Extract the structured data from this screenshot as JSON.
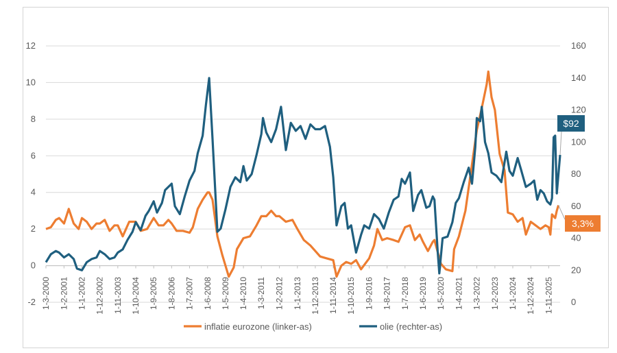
{
  "chart_data": {
    "type": "line",
    "title": "",
    "y_left": {
      "min": -2,
      "max": 12,
      "ticks": [
        "-2",
        "0",
        "2",
        "4",
        "6",
        "8",
        "10",
        "12"
      ]
    },
    "y_right": {
      "min": 0,
      "max": 160,
      "ticks": [
        "0",
        "20",
        "40",
        "60",
        "80",
        "100",
        "120",
        "140",
        "160"
      ]
    },
    "x_range": [
      "2000-03-01",
      "2026-06-01"
    ],
    "x_ticks": [
      {
        "label": "1-3-2000",
        "date": "2000-03-01"
      },
      {
        "label": "1-2-2001",
        "date": "2001-02-01"
      },
      {
        "label": "1-1-2002",
        "date": "2002-01-01"
      },
      {
        "label": "1-12-2002",
        "date": "2002-12-01"
      },
      {
        "label": "1-11-2003",
        "date": "2003-11-01"
      },
      {
        "label": "1-10-2004",
        "date": "2004-10-01"
      },
      {
        "label": "1-9-2005",
        "date": "2005-09-01"
      },
      {
        "label": "1-8-2006",
        "date": "2006-08-01"
      },
      {
        "label": "1-7-2007",
        "date": "2007-07-01"
      },
      {
        "label": "1-6-2008",
        "date": "2008-06-01"
      },
      {
        "label": "1-5-2009",
        "date": "2009-05-01"
      },
      {
        "label": "1-4-2010",
        "date": "2010-04-01"
      },
      {
        "label": "1-3-2011",
        "date": "2011-03-01"
      },
      {
        "label": "1-2-2012",
        "date": "2012-02-01"
      },
      {
        "label": "1-1-2013",
        "date": "2013-01-01"
      },
      {
        "label": "1-12-2013",
        "date": "2013-12-01"
      },
      {
        "label": "1-11-2014",
        "date": "2014-11-01"
      },
      {
        "label": "1-10-2015",
        "date": "2015-10-01"
      },
      {
        "label": "1-9-2016",
        "date": "2016-09-01"
      },
      {
        "label": "1-8-2017",
        "date": "2017-08-01"
      },
      {
        "label": "1-7-2018",
        "date": "2018-07-01"
      },
      {
        "label": "1-6-2019",
        "date": "2019-06-01"
      },
      {
        "label": "1-5-2020",
        "date": "2020-05-01"
      },
      {
        "label": "1-4-2021",
        "date": "2021-04-01"
      },
      {
        "label": "1-3-2022",
        "date": "2022-03-01"
      },
      {
        "label": "1-2-2023",
        "date": "2023-02-01"
      },
      {
        "label": "1-1-2024",
        "date": "2024-01-01"
      },
      {
        "label": "1-12-2024",
        "date": "2024-12-01"
      },
      {
        "label": "1-11-2025",
        "date": "2025-11-01"
      }
    ],
    "grid": "horizontal",
    "legend_position": "bottom",
    "series": [
      {
        "name": "inflatie eurozone (linker-as)",
        "axis": "left",
        "color": "#ED7D31",
        "points": [
          [
            "2000-03-01",
            2.0
          ],
          [
            "2000-06-01",
            2.1
          ],
          [
            "2000-09-01",
            2.5
          ],
          [
            "2000-11-01",
            2.6
          ],
          [
            "2001-02-01",
            2.3
          ],
          [
            "2001-05-01",
            3.1
          ],
          [
            "2001-08-01",
            2.3
          ],
          [
            "2001-11-01",
            2.0
          ],
          [
            "2002-01-01",
            2.6
          ],
          [
            "2002-04-01",
            2.4
          ],
          [
            "2002-07-01",
            2.0
          ],
          [
            "2002-10-01",
            2.3
          ],
          [
            "2002-12-01",
            2.3
          ],
          [
            "2003-03-01",
            2.5
          ],
          [
            "2003-06-01",
            1.9
          ],
          [
            "2003-09-01",
            2.2
          ],
          [
            "2003-11-01",
            2.2
          ],
          [
            "2004-02-01",
            1.6
          ],
          [
            "2004-06-01",
            2.4
          ],
          [
            "2004-10-01",
            2.4
          ],
          [
            "2005-01-01",
            1.9
          ],
          [
            "2005-05-01",
            2.0
          ],
          [
            "2005-09-01",
            2.6
          ],
          [
            "2005-12-01",
            2.2
          ],
          [
            "2006-03-01",
            2.2
          ],
          [
            "2006-06-01",
            2.5
          ],
          [
            "2006-08-01",
            2.3
          ],
          [
            "2006-11-01",
            1.9
          ],
          [
            "2007-03-01",
            1.9
          ],
          [
            "2007-07-01",
            1.8
          ],
          [
            "2007-09-01",
            2.1
          ],
          [
            "2007-12-01",
            3.1
          ],
          [
            "2008-03-01",
            3.6
          ],
          [
            "2008-06-01",
            4.0
          ],
          [
            "2008-07-01",
            4.0
          ],
          [
            "2008-09-01",
            3.6
          ],
          [
            "2008-12-01",
            1.6
          ],
          [
            "2009-03-01",
            0.6
          ],
          [
            "2009-05-01",
            0.0
          ],
          [
            "2009-07-01",
            -0.6
          ],
          [
            "2009-10-01",
            -0.1
          ],
          [
            "2009-12-01",
            0.9
          ],
          [
            "2010-04-01",
            1.5
          ],
          [
            "2010-08-01",
            1.6
          ],
          [
            "2010-12-01",
            2.2
          ],
          [
            "2011-03-01",
            2.7
          ],
          [
            "2011-06-01",
            2.7
          ],
          [
            "2011-09-01",
            3.0
          ],
          [
            "2011-12-01",
            2.7
          ],
          [
            "2012-02-01",
            2.7
          ],
          [
            "2012-06-01",
            2.4
          ],
          [
            "2012-10-01",
            2.5
          ],
          [
            "2013-01-01",
            2.0
          ],
          [
            "2013-05-01",
            1.4
          ],
          [
            "2013-09-01",
            1.1
          ],
          [
            "2013-12-01",
            0.8
          ],
          [
            "2014-03-01",
            0.5
          ],
          [
            "2014-07-01",
            0.4
          ],
          [
            "2014-11-01",
            0.3
          ],
          [
            "2015-01-01",
            -0.6
          ],
          [
            "2015-04-01",
            0.0
          ],
          [
            "2015-07-01",
            0.2
          ],
          [
            "2015-10-01",
            0.1
          ],
          [
            "2016-01-01",
            0.3
          ],
          [
            "2016-04-01",
            -0.2
          ],
          [
            "2016-09-01",
            0.4
          ],
          [
            "2016-12-01",
            1.1
          ],
          [
            "2017-02-01",
            2.0
          ],
          [
            "2017-05-01",
            1.4
          ],
          [
            "2017-08-01",
            1.5
          ],
          [
            "2017-12-01",
            1.4
          ],
          [
            "2018-03-01",
            1.3
          ],
          [
            "2018-07-01",
            2.1
          ],
          [
            "2018-10-01",
            2.2
          ],
          [
            "2019-01-01",
            1.4
          ],
          [
            "2019-04-01",
            1.7
          ],
          [
            "2019-06-01",
            1.3
          ],
          [
            "2019-09-01",
            0.8
          ],
          [
            "2019-12-01",
            1.3
          ],
          [
            "2020-01-01",
            1.4
          ],
          [
            "2020-05-01",
            0.1
          ],
          [
            "2020-08-01",
            -0.2
          ],
          [
            "2020-12-01",
            -0.3
          ],
          [
            "2021-01-01",
            0.9
          ],
          [
            "2021-04-01",
            1.6
          ],
          [
            "2021-08-01",
            3.0
          ],
          [
            "2021-11-01",
            4.9
          ],
          [
            "2022-03-01",
            7.4
          ],
          [
            "2022-06-01",
            8.6
          ],
          [
            "2022-09-01",
            9.9
          ],
          [
            "2022-10-01",
            10.6
          ],
          [
            "2022-12-01",
            9.2
          ],
          [
            "2023-02-01",
            8.5
          ],
          [
            "2023-05-01",
            6.1
          ],
          [
            "2023-08-01",
            5.2
          ],
          [
            "2023-10-01",
            2.9
          ],
          [
            "2024-01-01",
            2.8
          ],
          [
            "2024-04-01",
            2.4
          ],
          [
            "2024-07-01",
            2.6
          ],
          [
            "2024-09-01",
            1.7
          ],
          [
            "2024-12-01",
            2.4
          ],
          [
            "2025-03-01",
            2.2
          ],
          [
            "2025-06-01",
            2.0
          ],
          [
            "2025-09-01",
            2.2
          ],
          [
            "2025-11-01",
            2.1
          ],
          [
            "2025-12-01",
            1.7
          ],
          [
            "2026-01-01",
            2.8
          ],
          [
            "2026-03-01",
            2.6
          ],
          [
            "2026-04-01",
            3.0
          ],
          [
            "2026-05-01",
            3.3
          ]
        ]
      },
      {
        "name": "olie (rechter-as)",
        "axis": "right",
        "color": "#1F5F7F",
        "points": [
          [
            "2000-03-01",
            25
          ],
          [
            "2000-06-01",
            30
          ],
          [
            "2000-09-01",
            32
          ],
          [
            "2000-11-01",
            31
          ],
          [
            "2001-02-01",
            28
          ],
          [
            "2001-05-01",
            30
          ],
          [
            "2001-08-01",
            27
          ],
          [
            "2001-10-01",
            21
          ],
          [
            "2002-01-01",
            20
          ],
          [
            "2002-04-01",
            25
          ],
          [
            "2002-07-01",
            27
          ],
          [
            "2002-10-01",
            28
          ],
          [
            "2002-12-01",
            32
          ],
          [
            "2003-03-01",
            30
          ],
          [
            "2003-06-01",
            27
          ],
          [
            "2003-09-01",
            28
          ],
          [
            "2003-11-01",
            31
          ],
          [
            "2004-02-01",
            33
          ],
          [
            "2004-05-01",
            39
          ],
          [
            "2004-08-01",
            44
          ],
          [
            "2004-10-01",
            50
          ],
          [
            "2005-01-01",
            45
          ],
          [
            "2005-04-01",
            54
          ],
          [
            "2005-06-01",
            57
          ],
          [
            "2005-09-01",
            63
          ],
          [
            "2005-11-01",
            56
          ],
          [
            "2006-02-01",
            62
          ],
          [
            "2006-04-01",
            70
          ],
          [
            "2006-08-01",
            74
          ],
          [
            "2006-10-01",
            60
          ],
          [
            "2007-01-01",
            55
          ],
          [
            "2007-04-01",
            66
          ],
          [
            "2007-07-01",
            76
          ],
          [
            "2007-10-01",
            82
          ],
          [
            "2007-12-01",
            93
          ],
          [
            "2008-03-01",
            104
          ],
          [
            "2008-05-01",
            123
          ],
          [
            "2008-07-01",
            140
          ],
          [
            "2008-09-01",
            102
          ],
          [
            "2008-12-01",
            44
          ],
          [
            "2009-02-01",
            46
          ],
          [
            "2009-05-01",
            58
          ],
          [
            "2009-08-01",
            72
          ],
          [
            "2009-11-01",
            78
          ],
          [
            "2010-02-01",
            75
          ],
          [
            "2010-04-01",
            85
          ],
          [
            "2010-06-01",
            76
          ],
          [
            "2010-09-01",
            80
          ],
          [
            "2010-12-01",
            92
          ],
          [
            "2011-03-01",
            105
          ],
          [
            "2011-04-01",
            115
          ],
          [
            "2011-06-01",
            106
          ],
          [
            "2011-09-01",
            100
          ],
          [
            "2011-12-01",
            108
          ],
          [
            "2012-03-01",
            122
          ],
          [
            "2012-06-01",
            95
          ],
          [
            "2012-09-01",
            112
          ],
          [
            "2012-12-01",
            107
          ],
          [
            "2013-03-01",
            110
          ],
          [
            "2013-06-01",
            102
          ],
          [
            "2013-09-01",
            111
          ],
          [
            "2013-12-01",
            108
          ],
          [
            "2014-03-01",
            108
          ],
          [
            "2014-06-01",
            110
          ],
          [
            "2014-09-01",
            97
          ],
          [
            "2014-11-01",
            78
          ],
          [
            "2015-01-01",
            48
          ],
          [
            "2015-04-01",
            60
          ],
          [
            "2015-06-01",
            62
          ],
          [
            "2015-08-01",
            46
          ],
          [
            "2015-10-01",
            48
          ],
          [
            "2016-01-01",
            31
          ],
          [
            "2016-04-01",
            42
          ],
          [
            "2016-06-01",
            48
          ],
          [
            "2016-09-01",
            46
          ],
          [
            "2016-12-01",
            55
          ],
          [
            "2017-03-01",
            52
          ],
          [
            "2017-06-01",
            46
          ],
          [
            "2017-09-01",
            56
          ],
          [
            "2017-12-01",
            64
          ],
          [
            "2018-03-01",
            66
          ],
          [
            "2018-05-01",
            77
          ],
          [
            "2018-07-01",
            74
          ],
          [
            "2018-10-01",
            81
          ],
          [
            "2018-12-01",
            57
          ],
          [
            "2019-03-01",
            67
          ],
          [
            "2019-05-01",
            70
          ],
          [
            "2019-08-01",
            59
          ],
          [
            "2019-10-01",
            60
          ],
          [
            "2019-12-01",
            66
          ],
          [
            "2020-01-01",
            64
          ],
          [
            "2020-03-01",
            32
          ],
          [
            "2020-04-01",
            18
          ],
          [
            "2020-06-01",
            40
          ],
          [
            "2020-09-01",
            41
          ],
          [
            "2020-12-01",
            50
          ],
          [
            "2021-02-01",
            62
          ],
          [
            "2021-04-01",
            65
          ],
          [
            "2021-07-01",
            75
          ],
          [
            "2021-10-01",
            84
          ],
          [
            "2021-12-01",
            74
          ],
          [
            "2022-02-01",
            97
          ],
          [
            "2022-03-01",
            115
          ],
          [
            "2022-05-01",
            113
          ],
          [
            "2022-06-01",
            122
          ],
          [
            "2022-08-01",
            100
          ],
          [
            "2022-10-01",
            93
          ],
          [
            "2022-12-01",
            81
          ],
          [
            "2023-03-01",
            79
          ],
          [
            "2023-06-01",
            75
          ],
          [
            "2023-09-01",
            94
          ],
          [
            "2023-11-01",
            82
          ],
          [
            "2024-01-01",
            79
          ],
          [
            "2024-04-01",
            90
          ],
          [
            "2024-06-01",
            83
          ],
          [
            "2024-09-01",
            72
          ],
          [
            "2024-12-01",
            74
          ],
          [
            "2025-02-01",
            76
          ],
          [
            "2025-04-01",
            64
          ],
          [
            "2025-06-01",
            70
          ],
          [
            "2025-08-01",
            68
          ],
          [
            "2025-10-01",
            63
          ],
          [
            "2025-12-01",
            61
          ],
          [
            "2026-01-01",
            65
          ],
          [
            "2026-02-01",
            103
          ],
          [
            "2026-03-01",
            104
          ],
          [
            "2026-04-01",
            68
          ],
          [
            "2026-06-01",
            92
          ]
        ]
      }
    ],
    "callouts": [
      {
        "text": "$92",
        "color": "#1F5F7F",
        "series": 1
      },
      {
        "text": "3,3%",
        "color": "#ED7D31",
        "series": 0
      }
    ]
  }
}
